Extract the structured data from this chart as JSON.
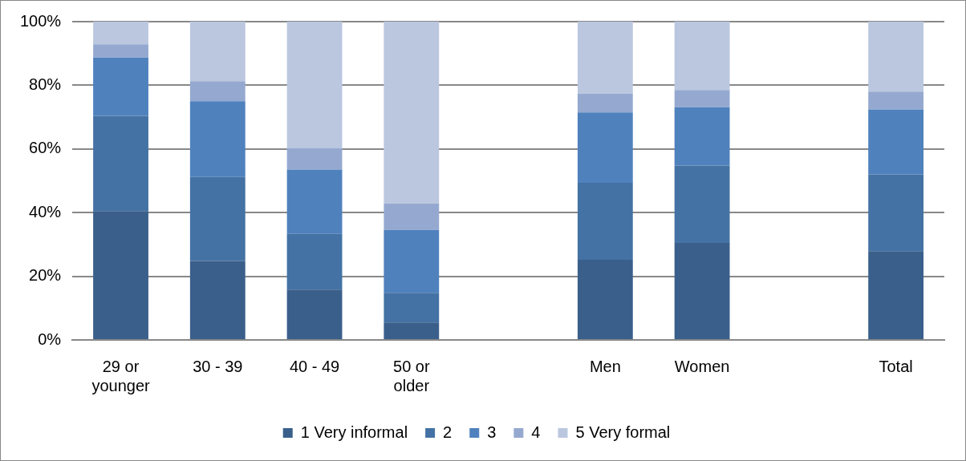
{
  "chart_data": {
    "type": "bar",
    "stacked": true,
    "categories": [
      "29 or younger",
      "30 - 39",
      "40 - 49",
      "50 or older",
      null,
      "Men",
      "Women",
      null,
      "Total"
    ],
    "series": [
      {
        "name": "1 Very informal",
        "color": "#3a5f8b",
        "values": [
          40.5,
          24.8,
          15.8,
          5.5,
          null,
          25.2,
          30.5,
          null,
          27.9
        ]
      },
      {
        "name": "2",
        "color": "#4472a4",
        "values": [
          29.9,
          26.4,
          17.5,
          9.3,
          null,
          24.2,
          24.3,
          null,
          24.1
        ]
      },
      {
        "name": "3",
        "color": "#4f81bd",
        "values": [
          18.3,
          23.8,
          20.2,
          19.8,
          null,
          22.1,
          18.3,
          null,
          20.4
        ]
      },
      {
        "name": "4",
        "color": "#95a9d0",
        "values": [
          4.2,
          6.3,
          6.8,
          8.3,
          null,
          5.9,
          5.4,
          null,
          5.6
        ]
      },
      {
        "name": "5 Very formal",
        "color": "#bbc7df",
        "values": [
          7.1,
          18.7,
          39.7,
          57.1,
          null,
          22.6,
          21.5,
          null,
          22.0
        ]
      }
    ],
    "ylim": [
      0,
      100
    ],
    "yticks": [
      {
        "value": 0,
        "label": "0%"
      },
      {
        "value": 20,
        "label": "20%"
      },
      {
        "value": 40,
        "label": "40%"
      },
      {
        "value": 60,
        "label": "60%"
      },
      {
        "value": 80,
        "label": "80%"
      },
      {
        "value": 100,
        "label": "100%"
      }
    ],
    "grid": "y",
    "legend": "bottom"
  }
}
